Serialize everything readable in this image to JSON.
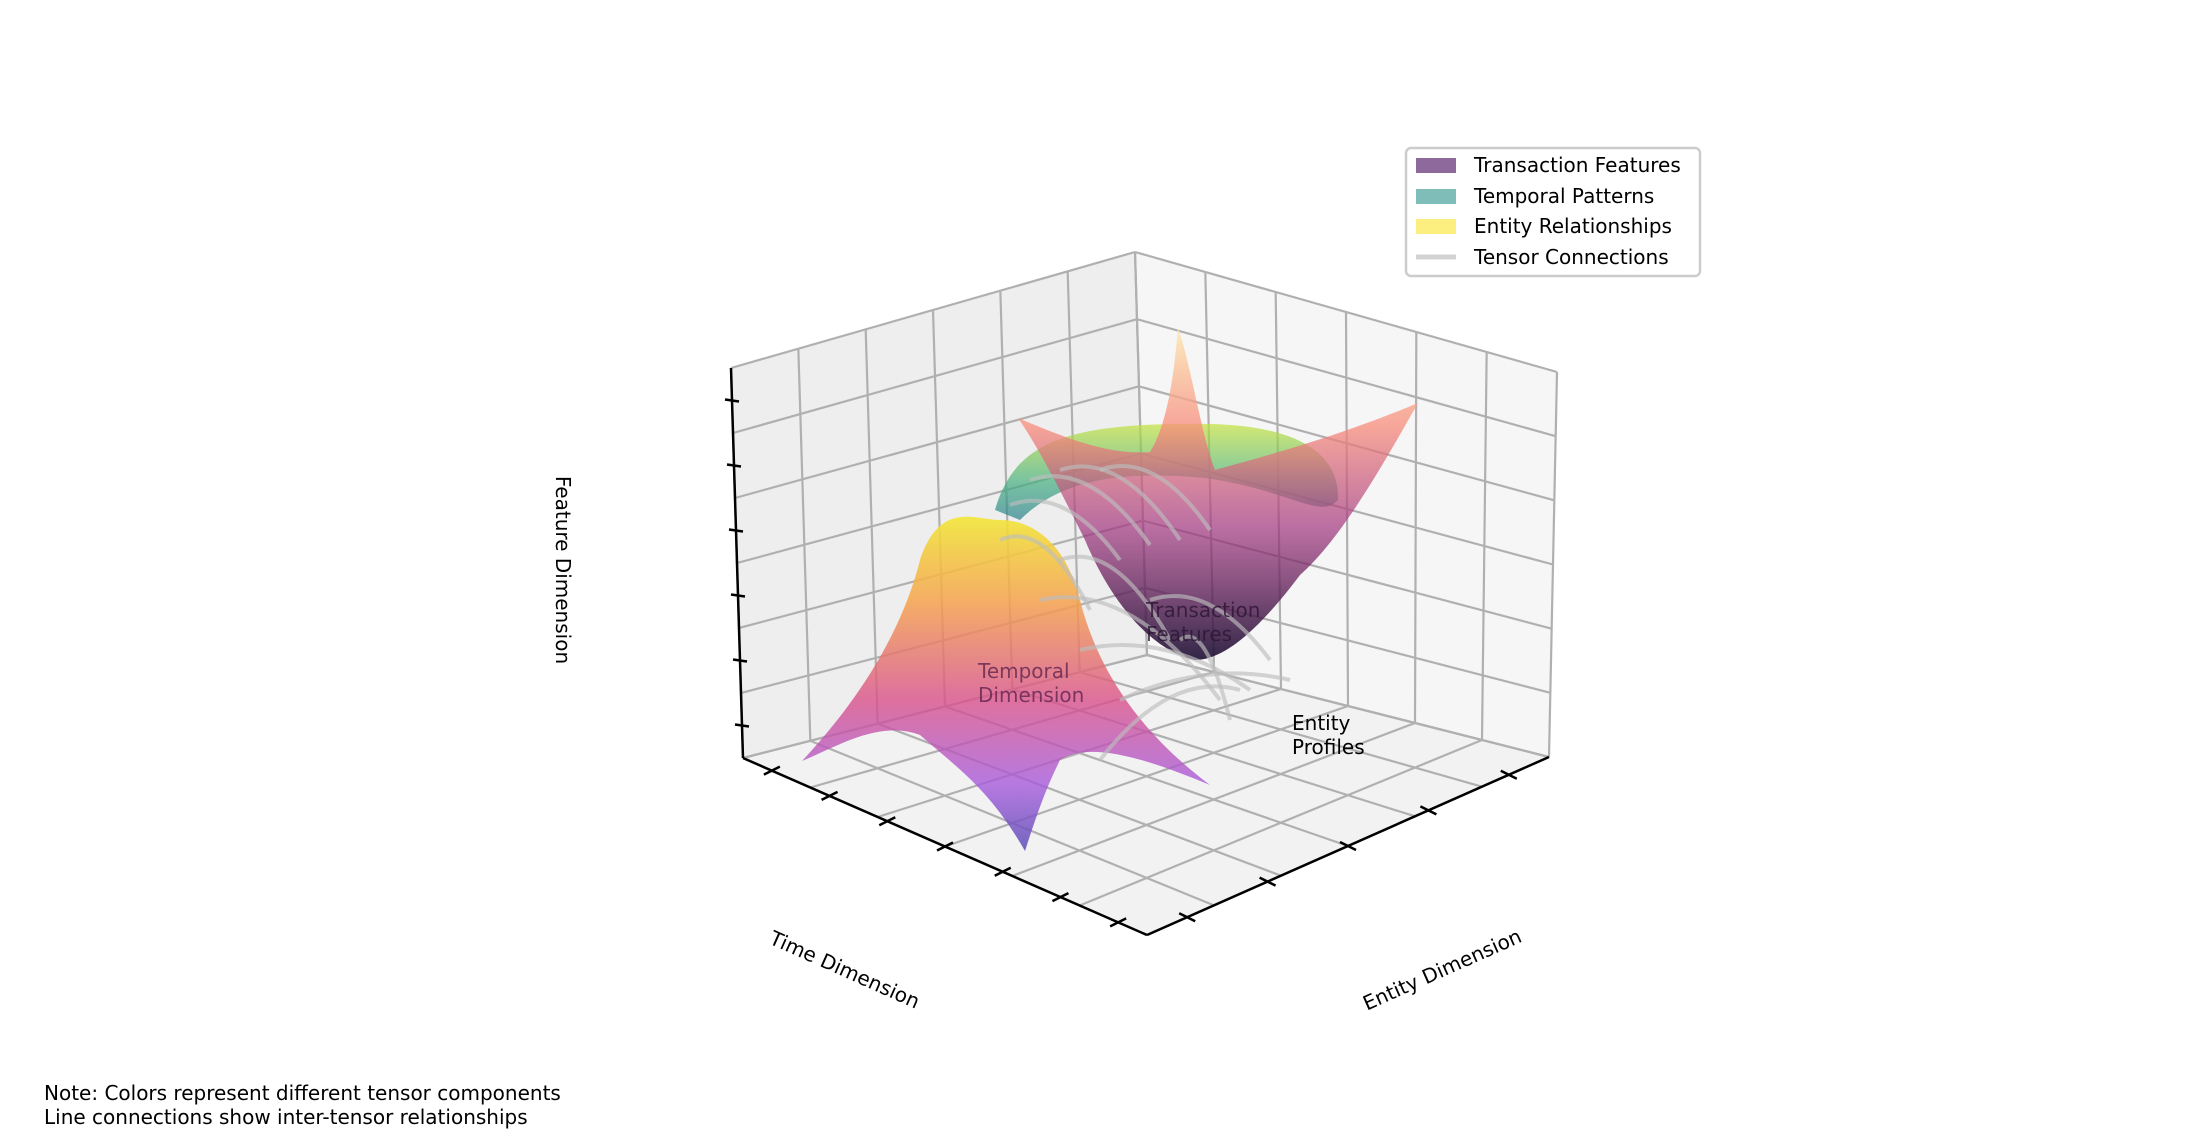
{
  "chart_data": {
    "type": "surface3d",
    "axes": {
      "x_label": "Time Dimension",
      "y_label": "Entity Dimension",
      "z_label": "Feature Dimension",
      "grid": true,
      "tick_labels_shown": false
    },
    "surfaces": [
      {
        "name": "Transaction Features",
        "colormap": "magma",
        "shape": "bowl"
      },
      {
        "name": "Temporal Patterns",
        "colormap": "viridis",
        "shape": "ring"
      },
      {
        "name": "Entity Relationships",
        "colormap": "plasma",
        "shape": "saddle / ridge"
      }
    ],
    "legend": {
      "placement": "top-right",
      "items": [
        {
          "label": "Transaction Features",
          "color": "#8e6a9c"
        },
        {
          "label": "Temporal Patterns",
          "color": "#7ebdb8"
        },
        {
          "label": "Entity Relationships",
          "color": "#fdee80"
        },
        {
          "label": "Tensor Connections",
          "color": "#d3d3d3"
        }
      ]
    },
    "annotations": [
      {
        "lines": [
          "Transaction",
          "Features"
        ]
      },
      {
        "lines": [
          "Temporal",
          "Dimension"
        ]
      },
      {
        "lines": [
          "Entity",
          "Profiles"
        ]
      }
    ]
  },
  "note": {
    "line1": "Note: Colors represent different tensor components",
    "line2": "Line connections show inter-tensor relationships"
  }
}
